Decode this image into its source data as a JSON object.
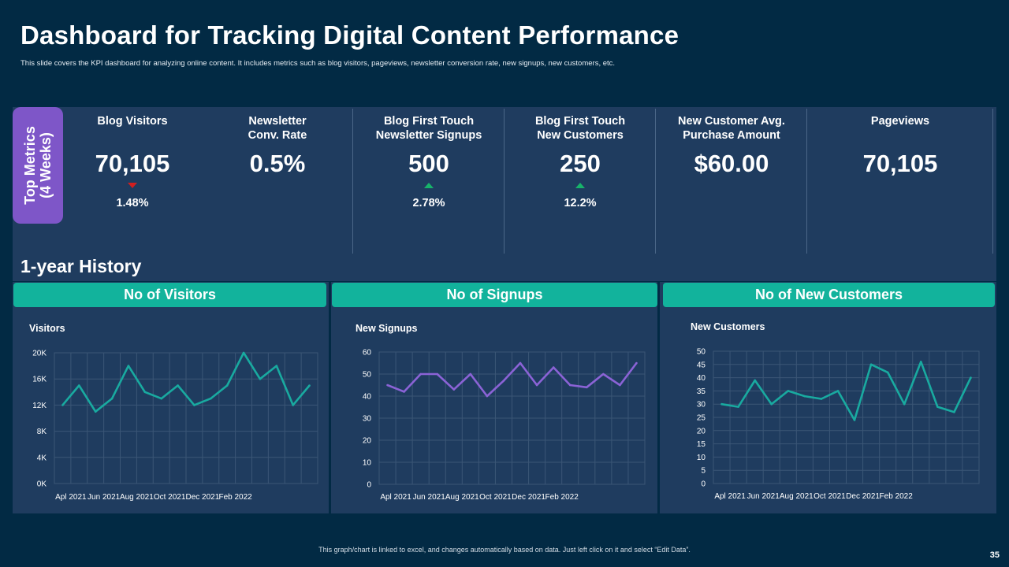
{
  "header": {
    "title": "Dashboard for Tracking Digital Content Performance",
    "subtitle": "This slide covers the KPI dashboard for analyzing online content. It includes metrics such as blog visitors, pageviews, newsletter conversion rate, new signups, new customers, etc."
  },
  "kpi": {
    "tag_line1": "Top Metrics",
    "tag_line2": "(4 Weeks)",
    "items": [
      {
        "label": "Blog Visitors",
        "value": "70,105",
        "change": "1.48%",
        "trend": "down"
      },
      {
        "label": "Newsletter\nConv. Rate",
        "value": "0.5%",
        "change": "",
        "trend": "none"
      },
      {
        "label": "Blog First Touch\nNewsletter Signups",
        "value": "500",
        "change": "2.78%",
        "trend": "up"
      },
      {
        "label": "Blog First Touch\nNew Customers",
        "value": "250",
        "change": "12.2%",
        "trend": "up"
      },
      {
        "label": "New Customer Avg.\nPurchase Amount",
        "value": "$60.00",
        "change": "",
        "trend": "none"
      },
      {
        "label": "Pageviews",
        "value": "70,105",
        "change": "",
        "trend": "none"
      }
    ]
  },
  "history": {
    "title": "1-year History",
    "headers": [
      "No of Visitors",
      "No of Signups",
      "No of New Customers"
    ]
  },
  "colors": {
    "visitors_line": "#19aaa0",
    "signups_line": "#8b63d6",
    "customers_line": "#19aaa0"
  },
  "chart_data": [
    {
      "type": "line",
      "title": "Visitors",
      "x_tick_labels": [
        "Apl 2021",
        "Jun 2021",
        "Aug 2021",
        "Oct 2021",
        "Dec 2021",
        "Feb 2022"
      ],
      "y_tick_labels": [
        "0K",
        "4K",
        "8K",
        "12K",
        "16K",
        "20K"
      ],
      "y_ticks": [
        0,
        4000,
        8000,
        12000,
        16000,
        20000
      ],
      "ylim": [
        0,
        20000
      ],
      "values": [
        12000,
        15000,
        11000,
        13000,
        18000,
        14000,
        13000,
        15000,
        12000,
        13000,
        15000,
        20000,
        16000,
        18000,
        12000,
        15000
      ],
      "series_name": "Visitors"
    },
    {
      "type": "line",
      "title": "New Signups",
      "x_tick_labels": [
        "Apl 2021",
        "Jun 2021",
        "Aug 2021",
        "Oct 2021",
        "Dec 2021",
        "Feb 2022"
      ],
      "y_tick_labels": [
        "0",
        "10",
        "20",
        "30",
        "40",
        "50",
        "60"
      ],
      "y_ticks": [
        0,
        10,
        20,
        30,
        40,
        50,
        60
      ],
      "ylim": [
        0,
        60
      ],
      "values": [
        45,
        42,
        50,
        50,
        43,
        50,
        40,
        47,
        55,
        45,
        53,
        45,
        44,
        50,
        45,
        55
      ],
      "series_name": "New Signups"
    },
    {
      "type": "line",
      "title": "New Customers",
      "x_tick_labels": [
        "Apl 2021",
        "Jun 2021",
        "Aug 2021",
        "Oct 2021",
        "Dec 2021",
        "Feb 2022"
      ],
      "y_tick_labels": [
        "0",
        "5",
        "10",
        "15",
        "20",
        "25",
        "30",
        "35",
        "40",
        "45",
        "50"
      ],
      "y_ticks": [
        0,
        5,
        10,
        15,
        20,
        25,
        30,
        35,
        40,
        45,
        50
      ],
      "ylim": [
        0,
        50
      ],
      "values": [
        30,
        29,
        39,
        30,
        35,
        33,
        32,
        35,
        24,
        45,
        42,
        30,
        46,
        29,
        27,
        40
      ],
      "series_name": "New Customers"
    }
  ],
  "footer": {
    "note": "This graph/chart is linked to excel, and changes automatically based on data. Just left click on it and select “Edit Data”.",
    "page_number": "35"
  }
}
